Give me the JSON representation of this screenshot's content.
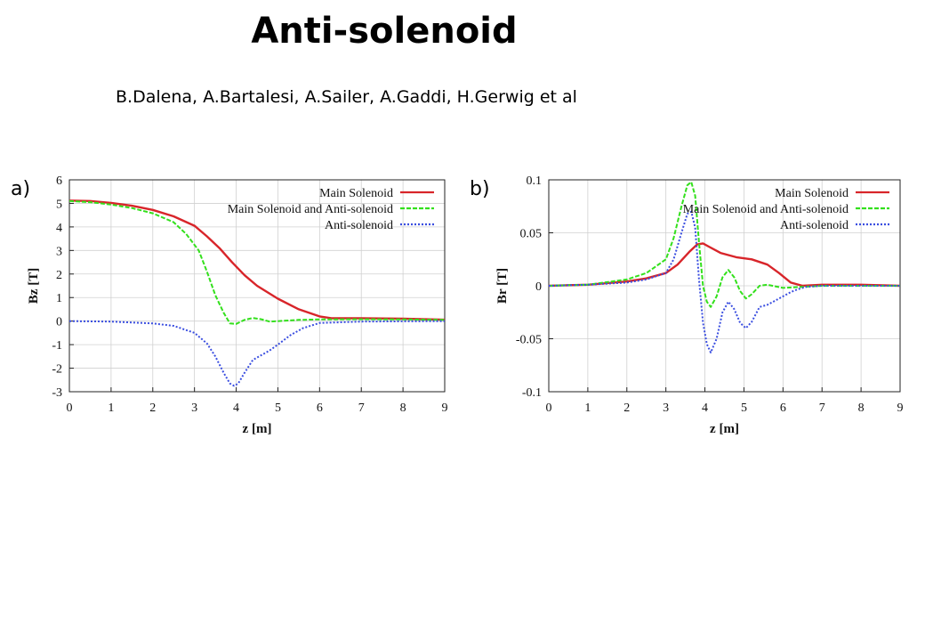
{
  "slide": {
    "title": "Anti-solenoid",
    "authors": "B.Dalena, A.Bartalesi, A.Sailer, A.Gaddi, H.Gerwig et al"
  },
  "colors": {
    "main_solenoid": "#d8252a",
    "main_and_anti": "#33e01c",
    "anti_solenoid": "#3a4ee0"
  },
  "chart_data": [
    {
      "type": "line",
      "panel_label": "a)",
      "title": "",
      "xlabel": "z [m]",
      "ylabel": "Bz [T]",
      "xlim": [
        0,
        9
      ],
      "ylim": [
        -3,
        6
      ],
      "xticks": [
        0,
        1,
        2,
        3,
        4,
        5,
        6,
        7,
        8,
        9
      ],
      "yticks": [
        -3,
        -2,
        -1,
        0,
        1,
        2,
        3,
        4,
        5,
        6
      ],
      "grid": true,
      "legend_position": "top-right",
      "series": [
        {
          "name": "Main Solenoid",
          "color": "#d8252a",
          "style": "solid",
          "x": [
            0,
            0.5,
            1,
            1.5,
            2,
            2.5,
            3,
            3.3,
            3.6,
            3.9,
            4.2,
            4.5,
            5,
            5.5,
            6,
            6.3,
            7,
            8,
            9
          ],
          "y": [
            5.12,
            5.1,
            5.02,
            4.9,
            4.72,
            4.45,
            4.05,
            3.6,
            3.1,
            2.5,
            1.95,
            1.5,
            0.95,
            0.5,
            0.2,
            0.12,
            0.12,
            0.1,
            0.06
          ]
        },
        {
          "name": "Main Solenoid and Anti-solenoid",
          "color": "#33e01c",
          "style": "dashed",
          "x": [
            0,
            0.5,
            1,
            1.5,
            2,
            2.5,
            2.8,
            3.1,
            3.3,
            3.5,
            3.7,
            3.85,
            4.0,
            4.2,
            4.4,
            4.6,
            4.8,
            5,
            5.5,
            6,
            7,
            8,
            9
          ],
          "y": [
            5.1,
            5.05,
            4.95,
            4.8,
            4.58,
            4.2,
            3.7,
            3.0,
            2.1,
            1.1,
            0.35,
            -0.1,
            -0.12,
            0.05,
            0.13,
            0.08,
            -0.02,
            0.0,
            0.05,
            0.07,
            0.08,
            0.07,
            0.05
          ]
        },
        {
          "name": "Anti-solenoid",
          "color": "#3a4ee0",
          "style": "dotted",
          "x": [
            0,
            1,
            2,
            2.5,
            3,
            3.3,
            3.5,
            3.7,
            3.85,
            3.95,
            4.05,
            4.2,
            4.4,
            4.6,
            4.8,
            5,
            5.3,
            5.6,
            6,
            7,
            8,
            9
          ],
          "y": [
            0,
            -0.02,
            -0.1,
            -0.2,
            -0.5,
            -0.95,
            -1.5,
            -2.2,
            -2.65,
            -2.75,
            -2.65,
            -2.2,
            -1.65,
            -1.45,
            -1.25,
            -1.0,
            -0.6,
            -0.3,
            -0.08,
            -0.02,
            -0.01,
            0
          ]
        }
      ]
    },
    {
      "type": "line",
      "panel_label": "b)",
      "title": "",
      "xlabel": "z [m]",
      "ylabel": "Br [T]",
      "xlim": [
        0,
        9
      ],
      "ylim": [
        -0.1,
        0.1
      ],
      "yticks": [
        -0.1,
        -0.05,
        0,
        0.05,
        0.1
      ],
      "ytick_labels": [
        "-0.1",
        "-0.05",
        "0",
        "0.05",
        "0.1"
      ],
      "xticks": [
        0,
        1,
        2,
        3,
        4,
        5,
        6,
        7,
        8,
        9
      ],
      "grid": true,
      "legend_position": "top-right",
      "series": [
        {
          "name": "Main Solenoid",
          "color": "#d8252a",
          "style": "solid",
          "x": [
            0,
            1,
            2,
            2.5,
            3,
            3.3,
            3.6,
            3.8,
            3.95,
            4.1,
            4.4,
            4.8,
            5.2,
            5.6,
            5.9,
            6.2,
            6.5,
            7,
            8,
            9
          ],
          "y": [
            0,
            0.001,
            0.004,
            0.007,
            0.012,
            0.02,
            0.032,
            0.039,
            0.04,
            0.037,
            0.031,
            0.027,
            0.025,
            0.02,
            0.012,
            0.003,
            0.0,
            0.001,
            0.001,
            0.0
          ]
        },
        {
          "name": "Main Solenoid and Anti-solenoid",
          "color": "#33e01c",
          "style": "dashed",
          "x": [
            0,
            1,
            2,
            2.5,
            3,
            3.2,
            3.4,
            3.55,
            3.65,
            3.75,
            3.85,
            3.95,
            4.05,
            4.15,
            4.3,
            4.45,
            4.6,
            4.75,
            4.9,
            5.05,
            5.2,
            5.4,
            5.6,
            6,
            7,
            8,
            9
          ],
          "y": [
            0,
            0.001,
            0.006,
            0.012,
            0.025,
            0.045,
            0.075,
            0.095,
            0.098,
            0.085,
            0.04,
            0.0,
            -0.015,
            -0.02,
            -0.01,
            0.008,
            0.015,
            0.008,
            -0.005,
            -0.012,
            -0.008,
            0.0,
            0.001,
            -0.002,
            0.0,
            0.0,
            0.0
          ]
        },
        {
          "name": "Anti-solenoid",
          "color": "#3a4ee0",
          "style": "dotted",
          "x": [
            0,
            1,
            2,
            2.5,
            3,
            3.2,
            3.4,
            3.55,
            3.65,
            3.75,
            3.85,
            3.95,
            4.05,
            4.15,
            4.3,
            4.45,
            4.6,
            4.75,
            4.9,
            5.05,
            5.2,
            5.4,
            5.6,
            5.8,
            6.0,
            6.2,
            6.4,
            6.6,
            7,
            8,
            9
          ],
          "y": [
            0,
            0.001,
            0.003,
            0.006,
            0.012,
            0.025,
            0.05,
            0.068,
            0.07,
            0.055,
            0.005,
            -0.035,
            -0.055,
            -0.063,
            -0.05,
            -0.025,
            -0.015,
            -0.022,
            -0.035,
            -0.04,
            -0.034,
            -0.02,
            -0.018,
            -0.014,
            -0.01,
            -0.006,
            -0.003,
            -0.001,
            0.0,
            0.0,
            0.0
          ]
        }
      ]
    }
  ]
}
